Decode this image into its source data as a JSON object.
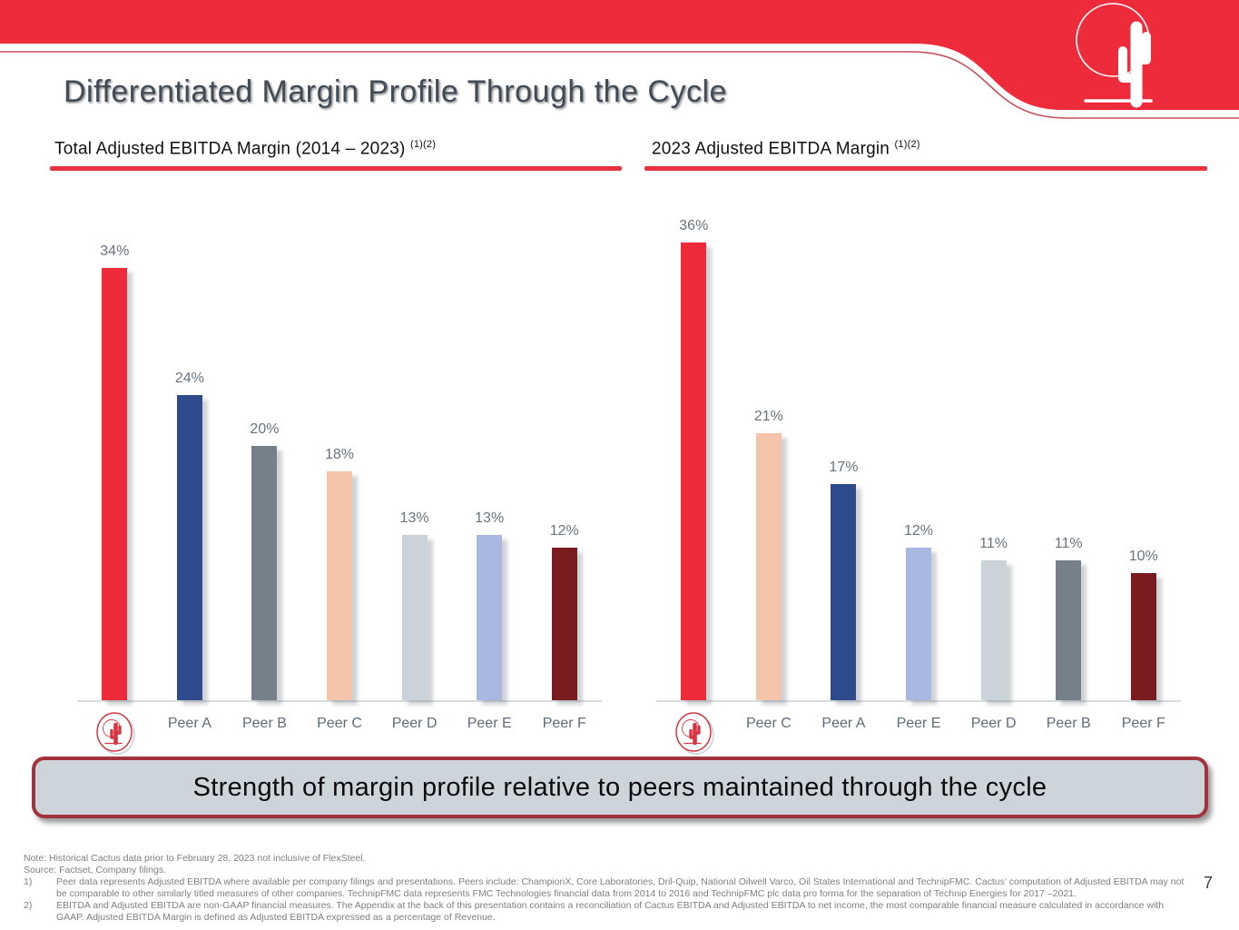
{
  "slide": {
    "title": "Differentiated Margin Profile Through the Cycle",
    "page_number": "7"
  },
  "banner": {
    "text": "Strength of margin profile relative to peers maintained through the cycle"
  },
  "colors": {
    "brand_red": "#EE2B3B",
    "header_underline": "#E8323E",
    "banner_bg": "#CDD5DB",
    "banner_border": "#A2333C",
    "value_label": "#67737F",
    "axis_line": "#D8DDE0"
  },
  "icons": {
    "header_logo": "cactus-logo",
    "axis_logo": "cactus-logo-small"
  },
  "chart_data": [
    {
      "type": "bar",
      "title": "Total Adjusted EBITDA Margin (2014 – 2023)",
      "superscript": "(1)(2)",
      "categories": [
        "Cactus",
        "Peer A",
        "Peer B",
        "Peer C",
        "Peer D",
        "Peer E",
        "Peer F"
      ],
      "values": [
        34,
        24,
        20,
        18,
        13,
        13,
        12
      ],
      "labels": [
        "34%",
        "24%",
        "20%",
        "18%",
        "13%",
        "13%",
        "12%"
      ],
      "bar_colors": [
        "#EE2B3B",
        "#2F4A8D",
        "#75808B",
        "#F4C5AB",
        "#C9D3D9",
        "#A9B8E1",
        "#7A1B20"
      ],
      "unit": "%",
      "ylim": [
        0,
        36
      ],
      "grid": false,
      "legend": false,
      "first_category_is_logo": true
    },
    {
      "type": "bar",
      "title": "2023 Adjusted EBITDA Margin",
      "superscript": "(1)(2)",
      "categories": [
        "Cactus",
        "Peer C",
        "Peer A",
        "Peer E",
        "Peer D",
        "Peer B",
        "Peer F"
      ],
      "values": [
        36,
        21,
        17,
        12,
        11,
        11,
        10
      ],
      "labels": [
        "36%",
        "21%",
        "17%",
        "12%",
        "11%",
        "11%",
        "10%"
      ],
      "bar_colors": [
        "#EE2B3B",
        "#F4C5AB",
        "#2F4A8D",
        "#A9B8E1",
        "#C9D3D9",
        "#75808B",
        "#7A1B20"
      ],
      "unit": "%",
      "ylim": [
        0,
        36
      ],
      "grid": false,
      "legend": false,
      "first_category_is_logo": true
    }
  ],
  "footnotes": {
    "note": "Note: Historical Cactus data prior to February 28, 2023 not inclusive of FlexSteel.",
    "source": "Source: Factset, Company filings.",
    "items": [
      {
        "num": "1)",
        "text": "Peer data represents Adjusted EBITDA where available per company filings and presentations. Peers include: ChampionX, Core Laboratories, Dril-Quip, National Oilwell Varco, Oil States International and TechnipFMC. Cactus’ computation of Adjusted EBITDA may not be comparable to other similarly titled measures of other companies. TechnipFMC data represents FMC Technologies financial data from 2014 to 2016 and TechnipFMC plc data pro forma for the separation of Technip Energies for 2017 –2021."
      },
      {
        "num": "2)",
        "text": "EBITDA and Adjusted EBITDA are non-GAAP financial measures. The Appendix at the back of this presentation contains a reconciliation of Cactus EBITDA and Adjusted EBITDA to net income, the most comparable financial measure calculated in accordance with GAAP. Adjusted EBITDA Margin is defined as Adjusted EBITDA expressed as a percentage of Revenue."
      }
    ]
  }
}
